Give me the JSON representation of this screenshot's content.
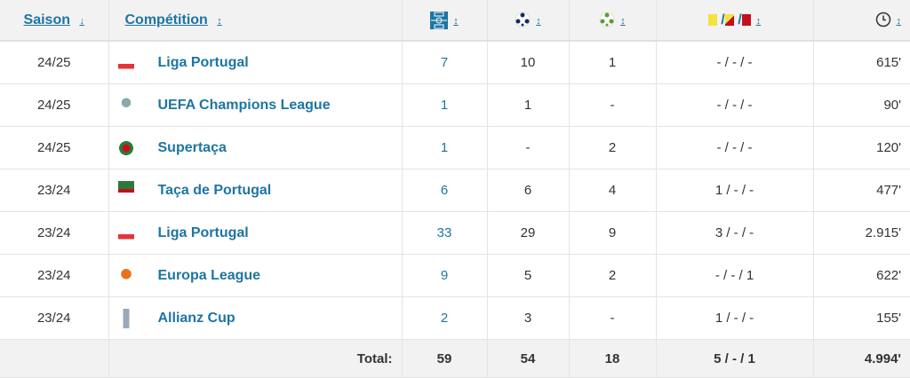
{
  "header": {
    "season": "Saison",
    "competition": "Compétition",
    "season_sort": "↓",
    "sort": "↕",
    "icons": [
      "pitch-icon",
      "goal-ball-icon",
      "assist-ball-icon",
      "cards-icon",
      "clock-icon"
    ],
    "card_sep": "/"
  },
  "rows": [
    {
      "season": "24/25",
      "competition": "Liga Portugal",
      "logo": "liga-portugal",
      "apps": "7",
      "goals": "10",
      "assists": "1",
      "cards": "- / - / -",
      "minutes": "615'"
    },
    {
      "season": "24/25",
      "competition": "UEFA Champions League",
      "logo": "champions-league",
      "apps": "1",
      "goals": "1",
      "assists": "-",
      "cards": "- / - / -",
      "minutes": "90'"
    },
    {
      "season": "24/25",
      "competition": "Supertaça",
      "logo": "supertaca",
      "apps": "1",
      "goals": "-",
      "assists": "2",
      "cards": "- / - / -",
      "minutes": "120'"
    },
    {
      "season": "23/24",
      "competition": "Taça de Portugal",
      "logo": "taca-de-portugal",
      "apps": "6",
      "goals": "6",
      "assists": "4",
      "cards": "1 / - / -",
      "minutes": "477'"
    },
    {
      "season": "23/24",
      "competition": "Liga Portugal",
      "logo": "liga-portugal",
      "apps": "33",
      "goals": "29",
      "assists": "9",
      "cards": "3 / - / -",
      "minutes": "2.915'"
    },
    {
      "season": "23/24",
      "competition": "Europa League",
      "logo": "europa-league",
      "apps": "9",
      "goals": "5",
      "assists": "2",
      "cards": "- / - / 1",
      "minutes": "622'"
    },
    {
      "season": "23/24",
      "competition": "Allianz Cup",
      "logo": "allianz-cup",
      "apps": "2",
      "goals": "3",
      "assists": "-",
      "cards": "1 / - / -",
      "minutes": "155'"
    }
  ],
  "total": {
    "label": "Total:",
    "apps": "59",
    "goals": "54",
    "assists": "18",
    "cards": "5 / - / 1",
    "minutes": "4.994'"
  },
  "colors": {
    "link": "#1d75a3",
    "yellow": "#f5e23c",
    "red": "#c4101c",
    "header_bg": "#f2f2f2"
  }
}
